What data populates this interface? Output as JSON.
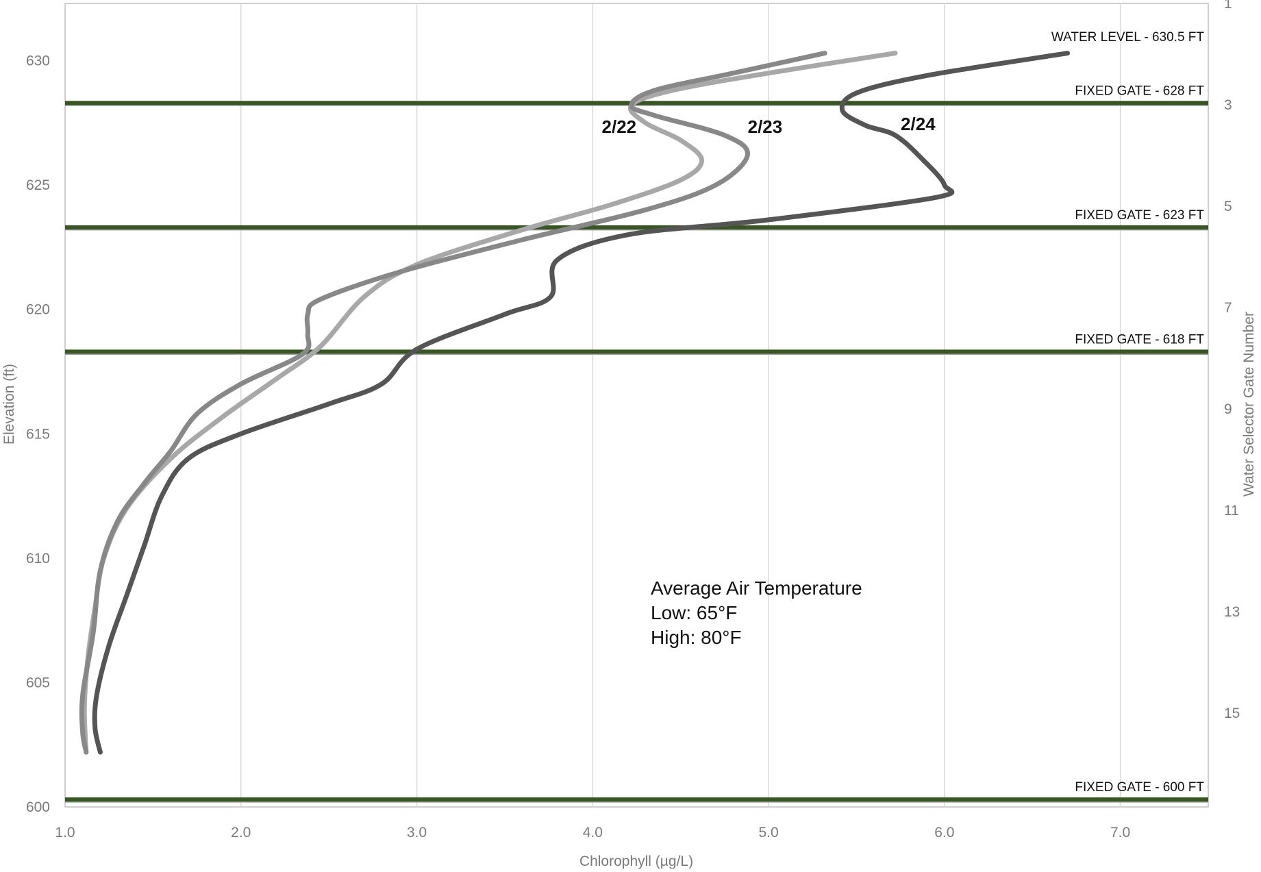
{
  "chart_data": {
    "type": "line",
    "title": "",
    "xlabel": "Chlorophyll (µg/L)",
    "ylabel": "Elevation (ft)",
    "y2label": "Water Selector Gate Number",
    "xlim": [
      1.0,
      7.5
    ],
    "ylim": [
      600,
      632.3
    ],
    "x_ticks": [
      "1.0",
      "2.0",
      "3.0",
      "4.0",
      "5.0",
      "6.0",
      "7.0"
    ],
    "y_ticks": [
      "600",
      "605",
      "610",
      "615",
      "620",
      "625",
      "630"
    ],
    "y2_ticks": [
      "1",
      "3",
      "5",
      "7",
      "9",
      "11",
      "13",
      "15"
    ],
    "grid": "vertical",
    "legend": "none",
    "series": [
      {
        "name": "2/22",
        "color": "#a8a8a8",
        "points": [
          [
            5.72,
            630.3
          ],
          [
            5.0,
            629.5
          ],
          [
            4.45,
            628.8
          ],
          [
            4.22,
            628.2
          ],
          [
            4.3,
            627.5
          ],
          [
            4.5,
            626.8
          ],
          [
            4.62,
            626.0
          ],
          [
            4.5,
            625.2
          ],
          [
            4.1,
            624.2
          ],
          [
            3.6,
            623.2
          ],
          [
            3.0,
            621.8
          ],
          [
            2.7,
            620.5
          ],
          [
            2.45,
            618.5
          ],
          [
            2.2,
            617.2
          ],
          [
            1.9,
            615.7
          ],
          [
            1.6,
            614.0
          ],
          [
            1.35,
            612.0
          ],
          [
            1.22,
            610.0
          ],
          [
            1.17,
            608.0
          ],
          [
            1.13,
            606.0
          ],
          [
            1.11,
            604.0
          ],
          [
            1.12,
            602.2
          ]
        ]
      },
      {
        "name": "2/23",
        "color": "#888888",
        "points": [
          [
            5.32,
            630.3
          ],
          [
            4.8,
            629.5
          ],
          [
            4.35,
            628.8
          ],
          [
            4.22,
            628.2
          ],
          [
            4.35,
            627.8
          ],
          [
            4.75,
            627.0
          ],
          [
            4.88,
            626.2
          ],
          [
            4.7,
            625.0
          ],
          [
            4.3,
            624.0
          ],
          [
            3.6,
            622.8
          ],
          [
            2.9,
            621.5
          ],
          [
            2.45,
            620.4
          ],
          [
            2.38,
            619.8
          ],
          [
            2.38,
            619.0
          ],
          [
            2.35,
            618.2
          ],
          [
            2.0,
            617.0
          ],
          [
            1.75,
            615.8
          ],
          [
            1.6,
            614.3
          ],
          [
            1.45,
            613.0
          ],
          [
            1.3,
            611.5
          ],
          [
            1.2,
            609.5
          ],
          [
            1.16,
            607.0
          ],
          [
            1.1,
            604.5
          ],
          [
            1.1,
            603.0
          ],
          [
            1.12,
            602.2
          ]
        ]
      },
      {
        "name": "2/24",
        "color": "#555555",
        "points": [
          [
            6.7,
            630.3
          ],
          [
            5.9,
            629.4
          ],
          [
            5.5,
            628.7
          ],
          [
            5.42,
            628.0
          ],
          [
            5.55,
            627.4
          ],
          [
            5.72,
            627.0
          ],
          [
            5.88,
            626.0
          ],
          [
            6.0,
            625.0
          ],
          [
            5.95,
            624.5
          ],
          [
            5.0,
            623.6
          ],
          [
            4.2,
            623.0
          ],
          [
            3.8,
            622.0
          ],
          [
            3.76,
            620.5
          ],
          [
            3.5,
            619.8
          ],
          [
            3.0,
            618.4
          ],
          [
            2.8,
            617.0
          ],
          [
            2.5,
            616.2
          ],
          [
            2.0,
            615.0
          ],
          [
            1.7,
            614.0
          ],
          [
            1.55,
            612.5
          ],
          [
            1.45,
            610.5
          ],
          [
            1.35,
            608.5
          ],
          [
            1.25,
            606.5
          ],
          [
            1.18,
            604.5
          ],
          [
            1.17,
            603.2
          ],
          [
            1.2,
            602.2
          ]
        ]
      }
    ],
    "series_labels": [
      {
        "text": "2/22",
        "x": 4.15,
        "y": 627.1
      },
      {
        "text": "2/23",
        "x": 4.98,
        "y": 627.1
      },
      {
        "text": "2/24",
        "x": 5.85,
        "y": 627.2
      }
    ],
    "reference_lines": [
      {
        "label": "WATER LEVEL - 630.5 FT",
        "y": 630.5,
        "draw": false
      },
      {
        "label": "FIXED GATE - 628 FT",
        "y": 628.3,
        "draw": true
      },
      {
        "label": "FIXED GATE - 623 FT",
        "y": 623.3,
        "draw": true
      },
      {
        "label": "FIXED GATE - 618 FT",
        "y": 618.3,
        "draw": true
      },
      {
        "label": "FIXED GATE - 600 FT",
        "y": 600.3,
        "draw": true
      }
    ],
    "annotation": [
      "Average Air Temperature",
      "Low: 65°F",
      "High: 80°F"
    ],
    "colors": {
      "gate_line": "#375623",
      "grid": "#d9d9d9",
      "axis_text": "#7a7a7a"
    }
  }
}
